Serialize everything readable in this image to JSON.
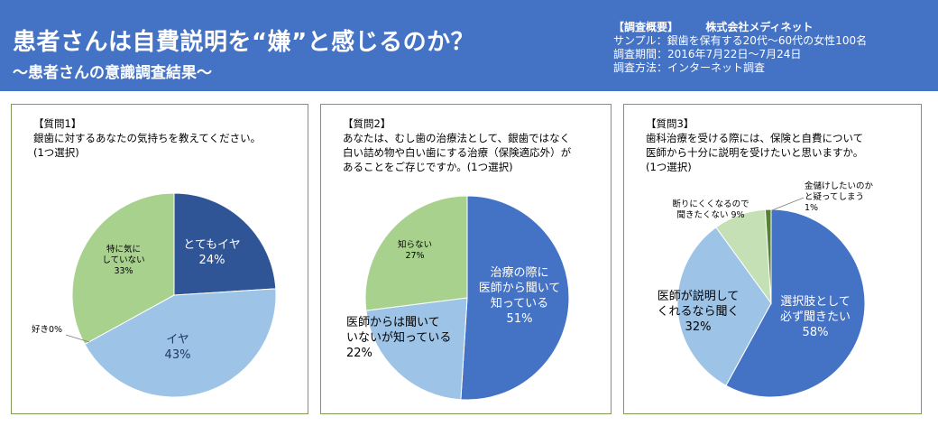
{
  "header": {
    "title": "患者さんは自費説明を“嫌”と感じるのか？",
    "subtitle": "～患者さんの意識調査結果～",
    "summary_label": "【調査概要】",
    "company": "株式会社メディネット",
    "sample": "サンプル：銀歯を保有する20代～60代の女性100名",
    "period": "調査期間：2016年7月22日～7月24日",
    "method": "調査方法：インターネット調査"
  },
  "colors": {
    "header_bg": "#4472c4",
    "dark_blue": "#2f5597",
    "mid_blue": "#4472c4",
    "light_blue": "#8faadc",
    "sky_blue": "#9dc3e6",
    "green": "#a9d18e",
    "pale_green": "#c5e0b4",
    "dark_green": "#548235"
  },
  "chart_data": [
    {
      "type": "pie",
      "question_no": "【質問1】",
      "question": [
        "銀歯に対するあなたの気持ちを教えてください。",
        "(1つ選択)"
      ],
      "start_angle_deg": 0,
      "slices": [
        {
          "label": [
            "とてもイヤ",
            "24%"
          ],
          "value": 24,
          "color": "#2f5597"
        },
        {
          "label": [
            "イヤ",
            "43%"
          ],
          "value": 43,
          "color": "#9dc3e6"
        },
        {
          "label": [
            "好き0%"
          ],
          "value": 0,
          "color": "#9dc3e6"
        },
        {
          "label": [
            "特に気に",
            "していない",
            "33%"
          ],
          "value": 33,
          "color": "#a9d18e"
        }
      ]
    },
    {
      "type": "pie",
      "question_no": "【質問2】",
      "question": [
        "あなたは、むし歯の治療法として、銀歯ではなく",
        "白い詰め物や白い歯にする治療（保険適応外）が",
        "あることをご存じですか。(1つ選択)"
      ],
      "start_angle_deg": 0,
      "slices": [
        {
          "label": [
            "治療の際に",
            "医師から聞いて",
            "知っている",
            "51%"
          ],
          "value": 51,
          "color": "#4472c4"
        },
        {
          "label": [
            "医師からは聞いて",
            "いないが知っている",
            "22%"
          ],
          "value": 22,
          "color": "#9dc3e6"
        },
        {
          "label": [
            "知らない",
            "27%"
          ],
          "value": 27,
          "color": "#a9d18e"
        }
      ]
    },
    {
      "type": "pie",
      "question_no": "【質問3】",
      "question": [
        "歯科治療を受ける際には、保険と自費について",
        "医師から十分に説明を受けたいと思いますか。",
        "(1つ選択)"
      ],
      "start_angle_deg": 0,
      "slices": [
        {
          "label": [
            "選択肢として",
            "必ず聞きたい",
            "58%"
          ],
          "value": 58,
          "color": "#4472c4"
        },
        {
          "label": [
            "医師が説明して",
            "くれるなら聞く",
            "32%"
          ],
          "value": 32,
          "color": "#9dc3e6"
        },
        {
          "label": [
            "断りにくくなるので",
            "聞きたくない  9%"
          ],
          "value": 9,
          "color": "#c5e0b4"
        },
        {
          "label": [
            "金儲けしたいのか",
            "と疑ってしまう",
            "1%"
          ],
          "value": 1,
          "color": "#548235"
        }
      ]
    }
  ]
}
